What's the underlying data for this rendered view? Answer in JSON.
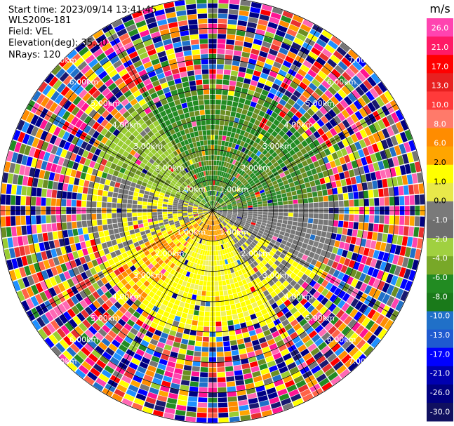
{
  "header": {
    "start_time": "Start time: 2023/09/14 13:41:45",
    "instrument": "WLS200s-181",
    "field": "Field: VEL",
    "elevation": "Elevation(deg): 35.30",
    "nrays": "NRays: 120"
  },
  "ppi": {
    "rays": 120,
    "max_range_km": 7.0,
    "ring_labels": [
      "1.00km",
      "2.00km",
      "3.00km",
      "4.00km",
      "5.00km",
      "6.00km",
      "7.00km"
    ],
    "spoke_angles_deg": [
      0,
      30,
      60,
      90,
      120,
      150,
      180,
      210,
      240,
      270,
      300,
      330
    ]
  },
  "colorbar": {
    "unit": "m/s",
    "ticks": [
      "26.0",
      "21.0",
      "17.0",
      "13.0",
      "10.0",
      "8.0",
      "6.0",
      "2.0",
      "1.0",
      "0.0",
      "-1.0",
      "-2.0",
      "-4.0",
      "-6.0",
      "-8.0",
      "-10.0",
      "-13.0",
      "-17.0",
      "-21.0",
      "-26.0",
      "-30.0"
    ],
    "colors": [
      "#ff44b0",
      "#ff1a66",
      "#ff0000",
      "#e82020",
      "#ff3a3a",
      "#ff7a6a",
      "#ff8c00",
      "#ffa500",
      "#ffff00",
      "#e8e84a",
      "#7a7a7a",
      "#6e6e6e",
      "#a0d040",
      "#78a828",
      "#228b22",
      "#1a7a1a",
      "#2070c8",
      "#1e5ad0",
      "#0000ff",
      "#0000b0",
      "#000080",
      "#101060"
    ]
  }
}
